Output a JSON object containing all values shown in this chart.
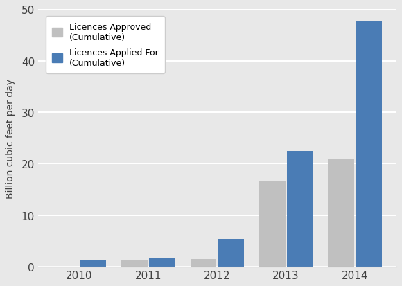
{
  "years": [
    "2010",
    "2011",
    "2012",
    "2013",
    "2014"
  ],
  "approved": [
    0,
    1.2,
    1.5,
    16.5,
    20.8
  ],
  "applied": [
    1.2,
    1.6,
    5.3,
    22.5,
    47.8
  ],
  "approved_color": "#c0c0c0",
  "applied_color": "#4a7cb5",
  "ylabel": "Billion cubic feet per day",
  "ylim": [
    0,
    50
  ],
  "yticks": [
    0,
    10,
    20,
    30,
    40,
    50
  ],
  "legend_approved": "Licences Approved\n(Cumulative)",
  "legend_applied": "Licences Applied For\n(Cumulative)",
  "background_color": "#e8e8e8",
  "plot_bg_color": "#e8e8e8",
  "bar_width": 0.38,
  "bar_gap": 0.02
}
